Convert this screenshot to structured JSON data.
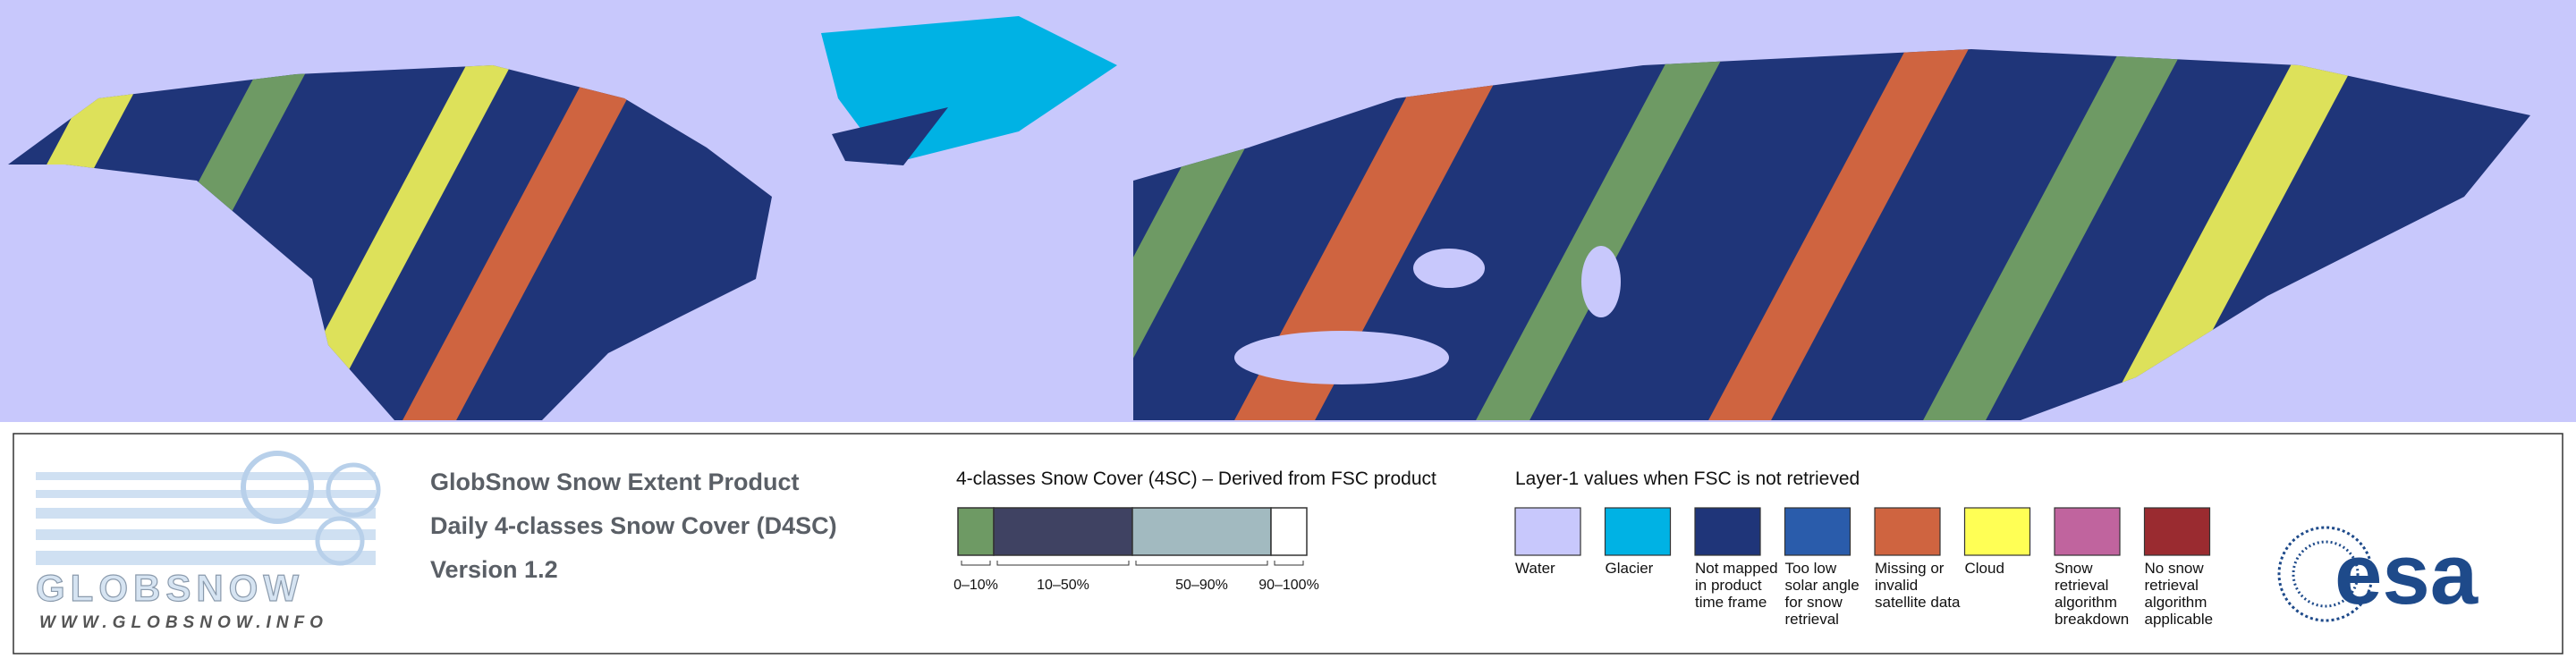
{
  "product": {
    "title": "GlobSnow Snow Extent Product",
    "subtitle": "Daily 4-classes Snow Cover (D4SC)",
    "version": "Version 1.2"
  },
  "logo": {
    "name": "GLOBSNOW",
    "url": "WWW.GLOBSNOW.INFO",
    "agency": "esa"
  },
  "snow_cover_legend": {
    "title": "4-classes Snow Cover (4SC) – Derived from FSC product",
    "classes": [
      {
        "label": "0–10%",
        "color": "#6e9a64"
      },
      {
        "label": "10–50%",
        "color": "#3f4262"
      },
      {
        "label": "50–90%",
        "color": "#a2bac0"
      },
      {
        "label": "90–100%",
        "color": "#ffffff"
      }
    ]
  },
  "layer1_legend": {
    "title": "Layer-1 values when FSC is not retrieved",
    "items": [
      {
        "label": "Water",
        "color": "#c8c8fc"
      },
      {
        "label": "Glacier",
        "color": "#00b2e4"
      },
      {
        "label": "Not mapped in product time frame",
        "color": "#1f3579"
      },
      {
        "label": "Too low solar angle for snow retrieval",
        "color": "#2a5cab"
      },
      {
        "label": "Missing or invalid satellite data",
        "color": "#cf6440"
      },
      {
        "label": "Cloud",
        "color": "#ffff55"
      },
      {
        "label": "Snow retrieval algorithm breakdown",
        "color": "#c0649e"
      },
      {
        "label": "No snow retrieval algorithm applicable",
        "color": "#9a2b30"
      }
    ]
  }
}
